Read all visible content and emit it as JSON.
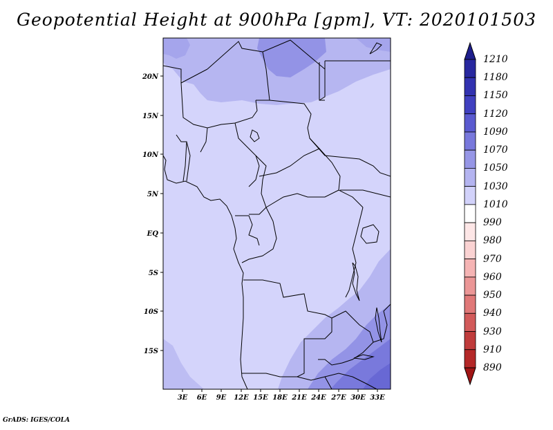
{
  "title": "Geopotential Height at 900hPa [gpm], VT: 2020101503",
  "footer": "GrADS: IGES/COLA",
  "map": {
    "variable": "Geopotential Height",
    "level": "900hPa",
    "units": "gpm",
    "valid_time": "2020101503",
    "lon_range": [
      0,
      35
    ],
    "lat_range": [
      -20,
      25
    ],
    "lon_ticks": [
      "3E",
      "6E",
      "9E",
      "12E",
      "15E",
      "18E",
      "21E",
      "24E",
      "27E",
      "30E",
      "33E"
    ],
    "lat_ticks": [
      "20N",
      "15N",
      "10N",
      "5N",
      "EQ",
      "5S",
      "10S",
      "15S"
    ],
    "region": "Central Africa"
  },
  "colorbar": {
    "levels": [
      "1210",
      "1180",
      "1150",
      "1120",
      "1090",
      "1070",
      "1050",
      "1030",
      "1010",
      "990",
      "980",
      "970",
      "960",
      "950",
      "940",
      "930",
      "910",
      "890"
    ],
    "colors": [
      "#1e1e8c",
      "#28289f",
      "#3232b0",
      "#4040c0",
      "#5a5ad0",
      "#7878dc",
      "#9696e6",
      "#b4b4f0",
      "#d2d2fa",
      "#ffffff",
      "#fde6e6",
      "#fad2d2",
      "#f5b4b4",
      "#eb9696",
      "#e07878",
      "#d25a5a",
      "#c03c3c",
      "#b42828",
      "#a01414"
    ]
  },
  "colors": {
    "base_fill": "#d4d4fb",
    "medium_fill": "#b6b6f1",
    "dark_fill": "#9393e6",
    "darker_fill": "#7979dc"
  }
}
